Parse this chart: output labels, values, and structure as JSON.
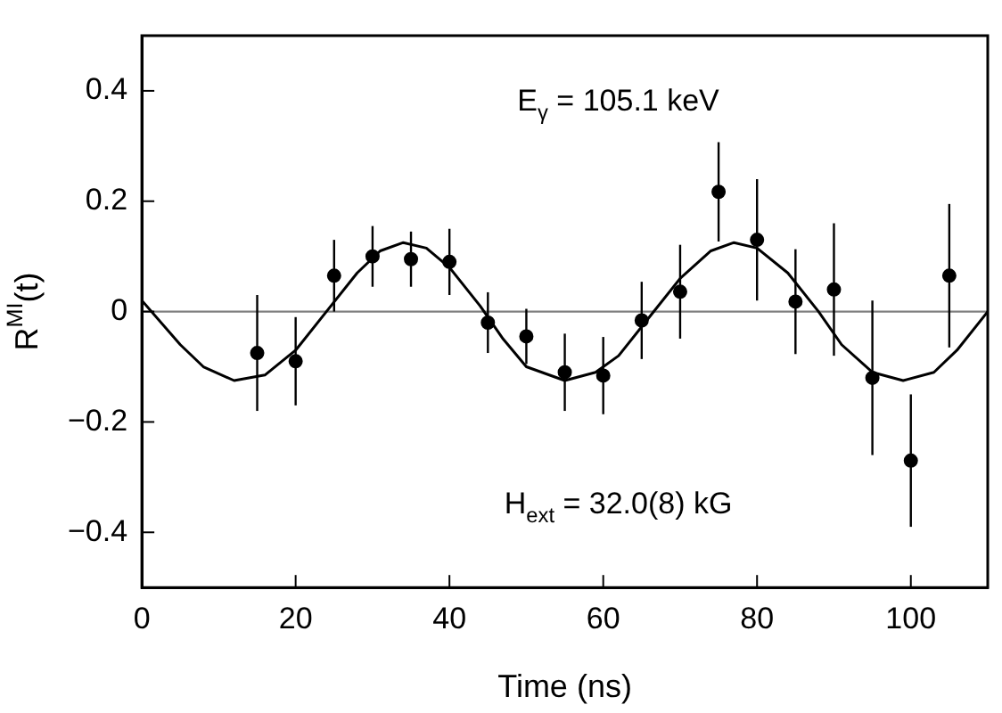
{
  "chart_data": {
    "type": "scatter",
    "xlabel": "Time (ns)",
    "ylabel": "R$^{MI}$(t)",
    "annotations": [
      "E$_{γ}$ = 105.1 keV",
      "H$_{ext}$ = 32.0(8) kG"
    ],
    "xlim": [
      0,
      110
    ],
    "xticks": [
      0,
      20,
      40,
      60,
      80,
      100
    ],
    "ylim": [
      -0.5,
      0.5
    ],
    "yticks": [
      {
        "value": -0.4,
        "label": "−0.4"
      },
      {
        "value": -0.2,
        "label": "−0.2"
      },
      0,
      0.2,
      0.4
    ],
    "grid": false,
    "legend": false,
    "ref_lines": [
      {
        "axis": "y",
        "value": 0,
        "color": "#808080"
      }
    ],
    "series": [
      {
        "color": "#000000",
        "marker": "circle",
        "x": [
          15,
          20,
          25,
          30,
          35,
          40,
          45,
          50,
          55,
          60,
          65,
          70,
          75,
          80,
          85,
          90,
          95,
          100,
          105
        ],
        "values": [
          -0.075,
          -0.09,
          0.065,
          0.1,
          0.095,
          0.09,
          -0.02,
          -0.045,
          -0.11,
          -0.116,
          -0.016,
          0.036,
          0.217,
          0.13,
          0.018,
          0.04,
          -0.12,
          -0.27,
          0.065
        ],
        "errors": [
          0.105,
          0.08,
          0.065,
          0.055,
          0.05,
          0.06,
          0.055,
          0.05,
          0.07,
          0.07,
          0.07,
          0.085,
          0.09,
          0.11,
          0.095,
          0.12,
          0.14,
          0.12,
          0.13
        ]
      },
      {
        "type": "line",
        "color": "#000000",
        "marker": "none",
        "line_style": "solid",
        "x": [
          0,
          5,
          8,
          12,
          16,
          20,
          24,
          28,
          31,
          34,
          37,
          40,
          44,
          47,
          50,
          55,
          59,
          62,
          66,
          70,
          74,
          77,
          80,
          84,
          88,
          91,
          95,
          99,
          103,
          106,
          110
        ],
        "values": [
          0.02,
          -0.06,
          -0.1,
          -0.125,
          -0.115,
          -0.07,
          0,
          0.07,
          0.11,
          0.125,
          0.115,
          0.08,
          0.01,
          -0.05,
          -0.1,
          -0.125,
          -0.11,
          -0.08,
          -0.01,
          0.06,
          0.11,
          0.125,
          0.115,
          0.07,
          0,
          -0.06,
          -0.11,
          -0.125,
          -0.11,
          -0.07,
          0
        ]
      }
    ]
  }
}
